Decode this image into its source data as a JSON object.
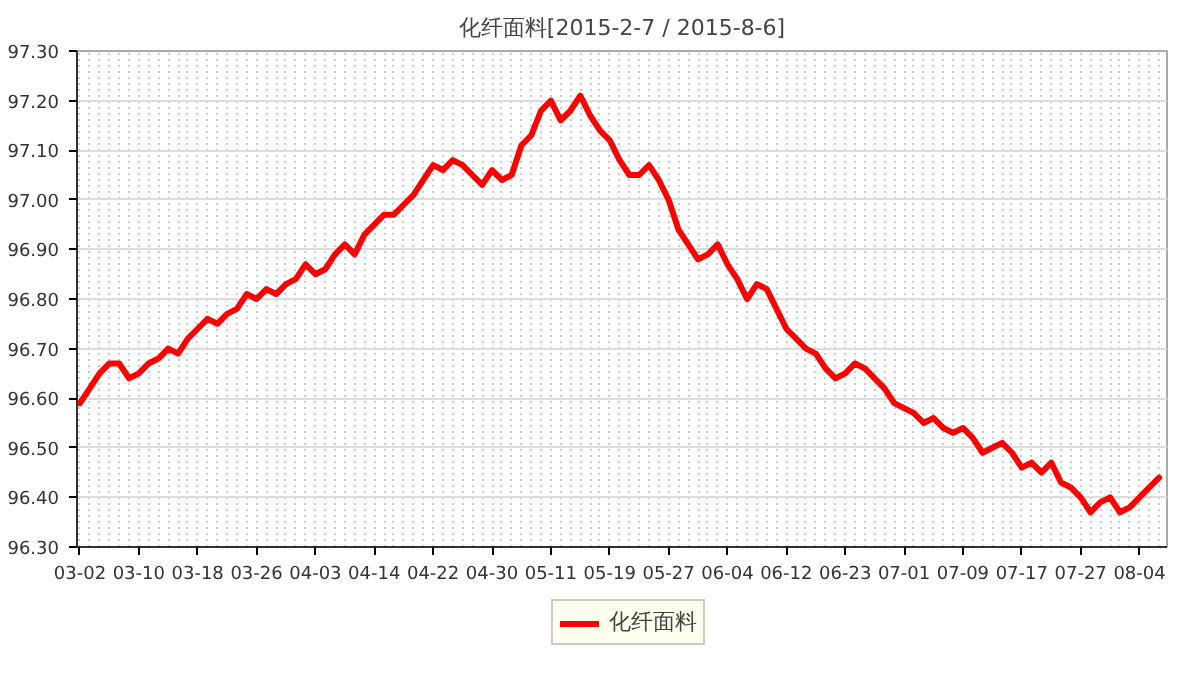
{
  "chart_data": {
    "type": "line",
    "title": "化纤面料[2015-2-7 / 2015-8-6]",
    "categories": [
      "03-02",
      null,
      null,
      null,
      null,
      null,
      "03-10",
      null,
      null,
      null,
      null,
      null,
      "03-18",
      null,
      null,
      null,
      null,
      null,
      "03-26",
      null,
      null,
      null,
      null,
      null,
      "04-03",
      null,
      null,
      null,
      null,
      null,
      "04-14",
      null,
      null,
      null,
      null,
      null,
      "04-22",
      null,
      null,
      null,
      null,
      null,
      "04-30",
      null,
      null,
      null,
      null,
      null,
      "05-11",
      null,
      null,
      null,
      null,
      null,
      "05-19",
      null,
      null,
      null,
      null,
      null,
      "05-27",
      null,
      null,
      null,
      null,
      null,
      "06-04",
      null,
      null,
      null,
      null,
      null,
      "06-12",
      null,
      null,
      null,
      null,
      null,
      "06-23",
      null,
      null,
      null,
      null,
      null,
      "07-01",
      null,
      null,
      null,
      null,
      null,
      "07-09",
      null,
      null,
      null,
      null,
      null,
      "07-17",
      null,
      null,
      null,
      null,
      null,
      "07-27",
      null,
      null,
      null,
      null,
      null,
      "08-04",
      null,
      null
    ],
    "series": [
      {
        "name": "化纤面料",
        "color": "#ff0000",
        "values": [
          96.59,
          96.62,
          96.65,
          96.67,
          96.67,
          96.64,
          96.65,
          96.67,
          96.68,
          96.7,
          96.69,
          96.72,
          96.74,
          96.76,
          96.75,
          96.77,
          96.78,
          96.81,
          96.8,
          96.82,
          96.81,
          96.83,
          96.84,
          96.87,
          96.85,
          96.86,
          96.89,
          96.91,
          96.89,
          96.93,
          96.95,
          96.97,
          96.97,
          96.99,
          97.01,
          97.04,
          97.07,
          97.06,
          97.08,
          97.07,
          97.05,
          97.03,
          97.06,
          97.04,
          97.05,
          97.11,
          97.13,
          97.18,
          97.2,
          97.16,
          97.18,
          97.21,
          97.17,
          97.14,
          97.12,
          97.08,
          97.05,
          97.05,
          97.07,
          97.04,
          97.0,
          96.94,
          96.91,
          96.88,
          96.89,
          96.91,
          96.87,
          96.84,
          96.8,
          96.83,
          96.82,
          96.78,
          96.74,
          96.72,
          96.7,
          96.69,
          96.66,
          96.64,
          96.65,
          96.67,
          96.66,
          96.64,
          96.62,
          96.59,
          96.58,
          96.57,
          96.55,
          96.56,
          96.54,
          96.53,
          96.54,
          96.52,
          96.49,
          96.5,
          96.51,
          96.49,
          96.46,
          96.47,
          96.45,
          96.47,
          96.43,
          96.42,
          96.4,
          96.37,
          96.39,
          96.4,
          96.37,
          96.38,
          96.4,
          96.42,
          96.44
        ]
      }
    ],
    "ylim": [
      96.3,
      97.3
    ],
    "yticks": [
      {
        "value": 96.3,
        "label": "96.30"
      },
      {
        "value": 96.4,
        "label": "96.40"
      },
      {
        "value": 96.5,
        "label": "96.50"
      },
      {
        "value": 96.6,
        "label": "96.60"
      },
      {
        "value": 96.7,
        "label": "96.70"
      },
      {
        "value": 96.8,
        "label": "96.80"
      },
      {
        "value": 96.9,
        "label": "96.90"
      },
      {
        "value": 97.0,
        "label": "97.00"
      },
      {
        "value": 97.1,
        "label": "97.10"
      },
      {
        "value": 97.2,
        "label": "97.20"
      },
      {
        "value": 97.3,
        "label": "97.30"
      }
    ],
    "grid": true,
    "legend": "bottom",
    "line_style": "solid"
  }
}
